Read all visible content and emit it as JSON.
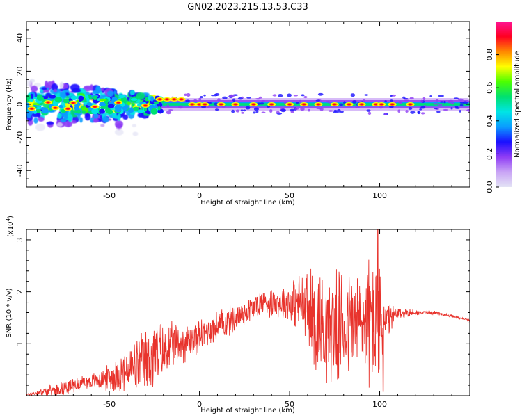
{
  "title": "GN02.2023.215.13.53.C33",
  "colors": {
    "snr_line": "#e8332c",
    "axis": "#000000",
    "background": "#ffffff",
    "colorbar_stops": [
      "#e3e3f5",
      "#c9a4f5",
      "#8f3cf5",
      "#1a10ff",
      "#0a9cff",
      "#00e5e5",
      "#00e070",
      "#4cff00",
      "#ffff00",
      "#ff8800",
      "#ff0022",
      "#ff1493"
    ]
  },
  "chart_data": [
    {
      "type": "heatmap",
      "xlabel": "Height of straight line (km)",
      "ylabel": "Frequency (Hz)",
      "xlim": [
        -96,
        150
      ],
      "ylim": [
        -50,
        50
      ],
      "x_ticks": [
        -50,
        0,
        50,
        100
      ],
      "y_ticks": [
        -40,
        -20,
        0,
        20,
        40
      ],
      "description_values": {
        "center_frequency_hz": 0,
        "broad_scatter_x_range_km": [
          -96,
          -25
        ],
        "broad_scatter_freq_range_hz": [
          -20,
          15
        ],
        "strong_spots_x_km": [
          -93,
          -84,
          -80,
          -73,
          -70,
          -58,
          -45,
          -30,
          -22,
          -18,
          -14,
          -10,
          -4,
          0,
          3,
          12,
          20,
          30,
          40,
          50,
          58,
          66,
          75,
          83,
          90,
          98,
          101,
          107,
          117
        ]
      },
      "colorbar": {
        "label": "Normalized spectral amplitude",
        "range": [
          0,
          1
        ],
        "ticks": [
          "0.0",
          "0.2",
          "0.4",
          "0.6",
          "0.8"
        ]
      }
    },
    {
      "type": "line",
      "xlabel": "Height of straight line (km)",
      "ylabel": "SNR (10 * v/v)",
      "y_multiplier": "(x10",
      "y_multiplier_exp": "4",
      "y_multiplier_close": ")",
      "xlim": [
        -96,
        150
      ],
      "ylim": [
        0,
        3.2
      ],
      "x_ticks": [
        -50,
        0,
        50,
        100
      ],
      "y_ticks": [
        1,
        2,
        3
      ],
      "envelope": {
        "x": [
          -96,
          -85,
          -75,
          -65,
          -55,
          -45,
          -35,
          -25,
          -15,
          -5,
          5,
          15,
          25,
          35,
          45,
          55,
          65,
          75,
          85,
          92,
          97,
          100,
          103,
          108,
          115,
          122,
          130,
          140,
          150
        ],
        "base": [
          0.02,
          0.08,
          0.15,
          0.25,
          0.3,
          0.4,
          0.55,
          0.75,
          0.95,
          1.05,
          1.25,
          1.4,
          1.6,
          1.8,
          1.8,
          1.8,
          1.45,
          1.3,
          1.4,
          1.4,
          1.45,
          1.3,
          1.4,
          1.55,
          1.6,
          1.6,
          1.6,
          1.53,
          1.45
        ],
        "amplitude": [
          0.02,
          0.1,
          0.15,
          0.15,
          0.2,
          0.4,
          0.6,
          0.8,
          0.5,
          0.4,
          0.35,
          0.35,
          0.3,
          0.3,
          0.35,
          0.6,
          1.2,
          1.2,
          1.2,
          1.3,
          1.6,
          1.3,
          0.5,
          0.2,
          0.1,
          0.05,
          0.04,
          0.03,
          0.02
        ]
      },
      "peak": {
        "x": 99,
        "y": 3.2
      },
      "trough": {
        "x": 102,
        "y": 0.08
      }
    }
  ]
}
